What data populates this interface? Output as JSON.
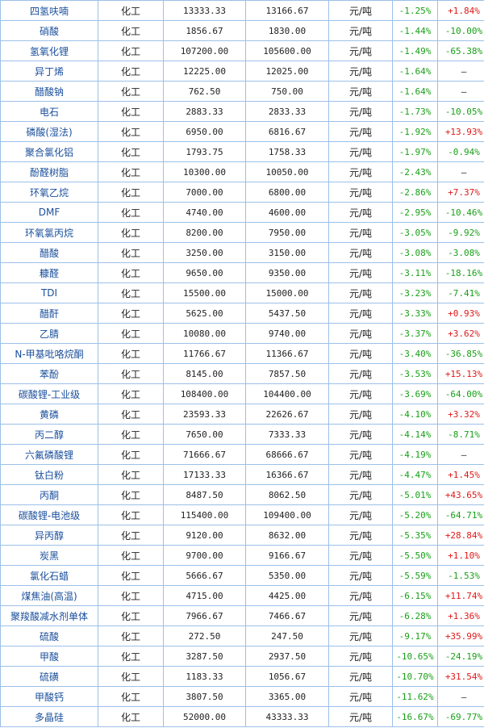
{
  "table": {
    "rows": [
      {
        "name": "四氢呋喃",
        "category": "化工",
        "price_prev": "13333.33",
        "price_now": "13166.67",
        "unit": "元/吨",
        "change": "-1.25%",
        "yoy": "+1.84%"
      },
      {
        "name": "硝酸",
        "category": "化工",
        "price_prev": "1856.67",
        "price_now": "1830.00",
        "unit": "元/吨",
        "change": "-1.44%",
        "yoy": "-10.00%"
      },
      {
        "name": "氢氧化锂",
        "category": "化工",
        "price_prev": "107200.00",
        "price_now": "105600.00",
        "unit": "元/吨",
        "change": "-1.49%",
        "yoy": "-65.38%"
      },
      {
        "name": "异丁烯",
        "category": "化工",
        "price_prev": "12225.00",
        "price_now": "12025.00",
        "unit": "元/吨",
        "change": "-1.64%",
        "yoy": "—"
      },
      {
        "name": "醋酸钠",
        "category": "化工",
        "price_prev": "762.50",
        "price_now": "750.00",
        "unit": "元/吨",
        "change": "-1.64%",
        "yoy": "—"
      },
      {
        "name": "电石",
        "category": "化工",
        "price_prev": "2883.33",
        "price_now": "2833.33",
        "unit": "元/吨",
        "change": "-1.73%",
        "yoy": "-10.05%"
      },
      {
        "name": "磷酸(湿法)",
        "category": "化工",
        "price_prev": "6950.00",
        "price_now": "6816.67",
        "unit": "元/吨",
        "change": "-1.92%",
        "yoy": "+13.93%"
      },
      {
        "name": "聚合氯化铝",
        "category": "化工",
        "price_prev": "1793.75",
        "price_now": "1758.33",
        "unit": "元/吨",
        "change": "-1.97%",
        "yoy": "-0.94%"
      },
      {
        "name": "酚醛树脂",
        "category": "化工",
        "price_prev": "10300.00",
        "price_now": "10050.00",
        "unit": "元/吨",
        "change": "-2.43%",
        "yoy": "—"
      },
      {
        "name": "环氧乙烷",
        "category": "化工",
        "price_prev": "7000.00",
        "price_now": "6800.00",
        "unit": "元/吨",
        "change": "-2.86%",
        "yoy": "+7.37%"
      },
      {
        "name": "DMF",
        "category": "化工",
        "price_prev": "4740.00",
        "price_now": "4600.00",
        "unit": "元/吨",
        "change": "-2.95%",
        "yoy": "-10.46%"
      },
      {
        "name": "环氧氯丙烷",
        "category": "化工",
        "price_prev": "8200.00",
        "price_now": "7950.00",
        "unit": "元/吨",
        "change": "-3.05%",
        "yoy": "-9.92%"
      },
      {
        "name": "醋酸",
        "category": "化工",
        "price_prev": "3250.00",
        "price_now": "3150.00",
        "unit": "元/吨",
        "change": "-3.08%",
        "yoy": "-3.08%"
      },
      {
        "name": "糠醛",
        "category": "化工",
        "price_prev": "9650.00",
        "price_now": "9350.00",
        "unit": "元/吨",
        "change": "-3.11%",
        "yoy": "-18.16%"
      },
      {
        "name": "TDI",
        "category": "化工",
        "price_prev": "15500.00",
        "price_now": "15000.00",
        "unit": "元/吨",
        "change": "-3.23%",
        "yoy": "-7.41%"
      },
      {
        "name": "醋酐",
        "category": "化工",
        "price_prev": "5625.00",
        "price_now": "5437.50",
        "unit": "元/吨",
        "change": "-3.33%",
        "yoy": "+0.93%"
      },
      {
        "name": "乙腈",
        "category": "化工",
        "price_prev": "10080.00",
        "price_now": "9740.00",
        "unit": "元/吨",
        "change": "-3.37%",
        "yoy": "+3.62%"
      },
      {
        "name": "N-甲基吡咯烷酮",
        "category": "化工",
        "price_prev": "11766.67",
        "price_now": "11366.67",
        "unit": "元/吨",
        "change": "-3.40%",
        "yoy": "-36.85%"
      },
      {
        "name": "苯酚",
        "category": "化工",
        "price_prev": "8145.00",
        "price_now": "7857.50",
        "unit": "元/吨",
        "change": "-3.53%",
        "yoy": "+15.13%"
      },
      {
        "name": "碳酸锂-工业级",
        "category": "化工",
        "price_prev": "108400.00",
        "price_now": "104400.00",
        "unit": "元/吨",
        "change": "-3.69%",
        "yoy": "-64.00%"
      },
      {
        "name": "黄磷",
        "category": "化工",
        "price_prev": "23593.33",
        "price_now": "22626.67",
        "unit": "元/吨",
        "change": "-4.10%",
        "yoy": "+3.32%"
      },
      {
        "name": "丙二醇",
        "category": "化工",
        "price_prev": "7650.00",
        "price_now": "7333.33",
        "unit": "元/吨",
        "change": "-4.14%",
        "yoy": "-8.71%"
      },
      {
        "name": "六氟磷酸锂",
        "category": "化工",
        "price_prev": "71666.67",
        "price_now": "68666.67",
        "unit": "元/吨",
        "change": "-4.19%",
        "yoy": "—"
      },
      {
        "name": "钛白粉",
        "category": "化工",
        "price_prev": "17133.33",
        "price_now": "16366.67",
        "unit": "元/吨",
        "change": "-4.47%",
        "yoy": "+1.45%"
      },
      {
        "name": "丙酮",
        "category": "化工",
        "price_prev": "8487.50",
        "price_now": "8062.50",
        "unit": "元/吨",
        "change": "-5.01%",
        "yoy": "+43.65%"
      },
      {
        "name": "碳酸锂-电池级",
        "category": "化工",
        "price_prev": "115400.00",
        "price_now": "109400.00",
        "unit": "元/吨",
        "change": "-5.20%",
        "yoy": "-64.71%"
      },
      {
        "name": "异丙醇",
        "category": "化工",
        "price_prev": "9120.00",
        "price_now": "8632.00",
        "unit": "元/吨",
        "change": "-5.35%",
        "yoy": "+28.84%"
      },
      {
        "name": "炭黑",
        "category": "化工",
        "price_prev": "9700.00",
        "price_now": "9166.67",
        "unit": "元/吨",
        "change": "-5.50%",
        "yoy": "+1.10%"
      },
      {
        "name": "氯化石蜡",
        "category": "化工",
        "price_prev": "5666.67",
        "price_now": "5350.00",
        "unit": "元/吨",
        "change": "-5.59%",
        "yoy": "-1.53%"
      },
      {
        "name": "煤焦油(高温)",
        "category": "化工",
        "price_prev": "4715.00",
        "price_now": "4425.00",
        "unit": "元/吨",
        "change": "-6.15%",
        "yoy": "+11.74%"
      },
      {
        "name": "聚羧酸减水剂单体",
        "category": "化工",
        "price_prev": "7966.67",
        "price_now": "7466.67",
        "unit": "元/吨",
        "change": "-6.28%",
        "yoy": "+1.36%"
      },
      {
        "name": "硫酸",
        "category": "化工",
        "price_prev": "272.50",
        "price_now": "247.50",
        "unit": "元/吨",
        "change": "-9.17%",
        "yoy": "+35.99%"
      },
      {
        "name": "甲酸",
        "category": "化工",
        "price_prev": "3287.50",
        "price_now": "2937.50",
        "unit": "元/吨",
        "change": "-10.65%",
        "yoy": "-24.19%"
      },
      {
        "name": "硫磺",
        "category": "化工",
        "price_prev": "1183.33",
        "price_now": "1056.67",
        "unit": "元/吨",
        "change": "-10.70%",
        "yoy": "+31.54%"
      },
      {
        "name": "甲酸钙",
        "category": "化工",
        "price_prev": "3807.50",
        "price_now": "3365.00",
        "unit": "元/吨",
        "change": "-11.62%",
        "yoy": "—"
      },
      {
        "name": "多晶硅",
        "category": "化工",
        "price_prev": "52000.00",
        "price_now": "43333.33",
        "unit": "元/吨",
        "change": "-16.67%",
        "yoy": "-69.77%"
      }
    ]
  },
  "colors": {
    "border": "#9cc0e8",
    "name_text": "#1a4f9c",
    "up": "#e01818",
    "down": "#18a018"
  }
}
